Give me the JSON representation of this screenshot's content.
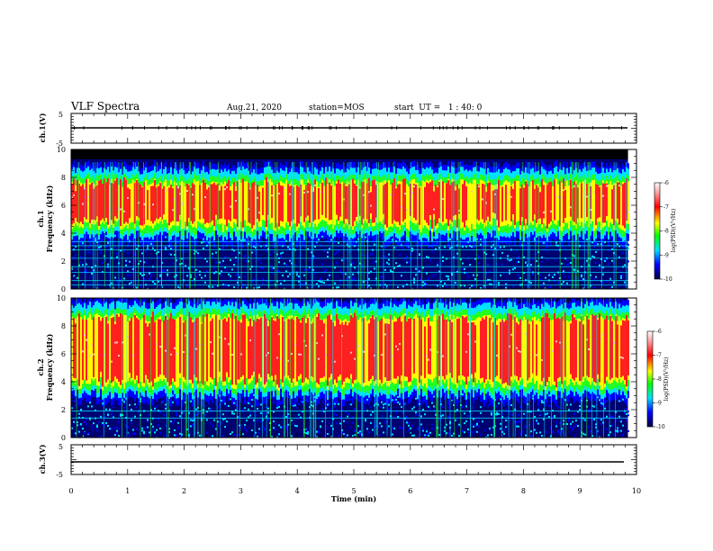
{
  "header": {
    "title": "VLF Spectra",
    "date": "Aug.21, 2020",
    "station": "station=MOS",
    "start": "start  UT =   1 : 40: 0"
  },
  "colors": {
    "bar_top": "#f8c0c0",
    "bar_red": "#ff2020",
    "bar_yellow": "#ffff00",
    "bar_green": "#20ff20",
    "bar_cyan": "#00e0ff",
    "bar_blue": "#0000ff",
    "bar_navy": "#000060",
    "trace": "#000000"
  },
  "chart_data": [
    {
      "id": "ch1-waveform",
      "type": "line",
      "ylabel": "ch.1(V)",
      "yticks": [
        "5",
        "-5"
      ],
      "ylim": [
        -5,
        5
      ],
      "x": [
        0,
        9.85
      ],
      "y": [
        -0.8,
        -0.8
      ],
      "description_series": "flat voltage trace near -1 V"
    },
    {
      "id": "ch1-spectrogram",
      "type": "heatmap",
      "ylabel": "ch.1\nFrequency (kHz)",
      "ylabel_lines": [
        "ch.1",
        "Frequency (kHz)"
      ],
      "yticks": [
        "0",
        "2",
        "4",
        "6",
        "8",
        "10"
      ],
      "ylim": [
        0,
        10
      ],
      "xlim": [
        0,
        10
      ],
      "data_extent_min": 9.85,
      "band": {
        "peak_khz": 6.5,
        "low_khz": 4.5,
        "high_khz": 8.5
      },
      "narrowband_lines_khz": [
        0.3,
        0.6,
        1.2,
        1.6,
        2.2,
        2.8,
        3.1,
        3.4
      ],
      "colorbar": {
        "label": "log(PSD)(V²/Hz)",
        "ticks": [
          "-6",
          "-7",
          "-8",
          "-9",
          "-10"
        ],
        "range": [
          -10,
          -6
        ]
      }
    },
    {
      "id": "ch2-spectrogram",
      "type": "heatmap",
      "ylabel": "ch.2\nFrequency (kHz)",
      "ylabel_lines": [
        "ch.2",
        "Frequency (kHz)"
      ],
      "yticks": [
        "0",
        "2",
        "4",
        "6",
        "8",
        "10"
      ],
      "ylim": [
        0,
        10
      ],
      "xlim": [
        0,
        10
      ],
      "data_extent_min": 9.85,
      "band": {
        "peak_khz": 6.5,
        "low_khz": 3.8,
        "high_khz": 9.5
      },
      "narrowband_lines_khz": [
        1.9,
        1.4
      ],
      "colorbar": {
        "label": "log(PSD)(V²/Hz)",
        "ticks": [
          "-6",
          "-7",
          "-8",
          "-9",
          "-10"
        ],
        "range": [
          -10,
          -6
        ]
      }
    },
    {
      "id": "ch3-waveform",
      "type": "line",
      "ylabel": "ch.3(V)",
      "yticks": [
        "5",
        "0",
        "-5"
      ],
      "ylim": [
        -5,
        5
      ],
      "x": [
        0,
        9.85
      ],
      "y": [
        -0.8,
        -0.8
      ],
      "xlabel": "Time (min)",
      "xticks": [
        "0",
        "1",
        "2",
        "3",
        "4",
        "5",
        "6",
        "7",
        "8",
        "9",
        "10"
      ],
      "xlim": [
        0,
        10
      ]
    }
  ]
}
